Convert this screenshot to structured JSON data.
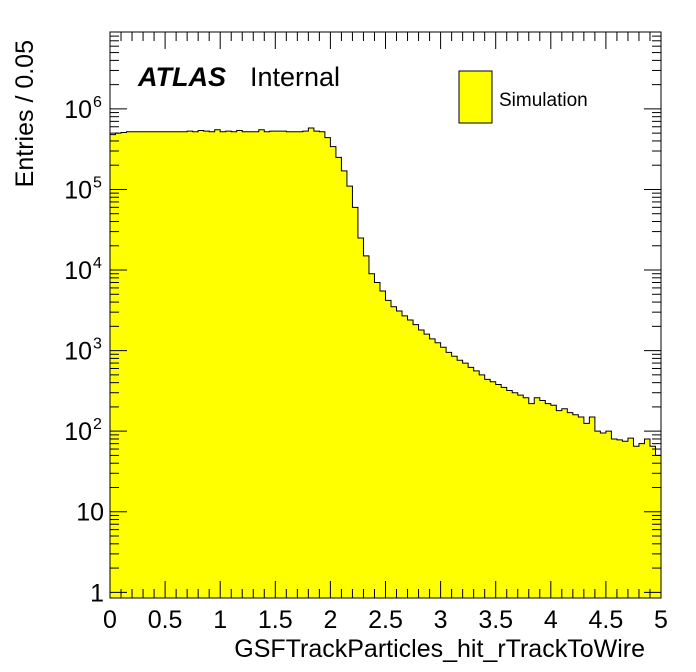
{
  "chart_data": {
    "type": "bar",
    "title": "",
    "xlabel": "GSFTrackParticles_hit_rTrackToWire",
    "ylabel": "Entries / 0.05",
    "xlim": [
      0,
      5
    ],
    "ylim": [
      0.85,
      9000000
    ],
    "yscale": "log",
    "bin_width": 0.05,
    "x_ticks": [
      "0",
      "0.5",
      "1",
      "1.5",
      "2",
      "2.5",
      "3",
      "3.5",
      "4",
      "4.5",
      "5"
    ],
    "y_ticks": [
      {
        "value": 1,
        "base": "1",
        "exp": ""
      },
      {
        "value": 10,
        "base": "10",
        "exp": ""
      },
      {
        "value": 100,
        "base": "10",
        "exp": "2"
      },
      {
        "value": 1000,
        "base": "10",
        "exp": "3"
      },
      {
        "value": 10000,
        "base": "10",
        "exp": "4"
      },
      {
        "value": 100000,
        "base": "10",
        "exp": "5"
      },
      {
        "value": 1000000,
        "base": "10",
        "exp": "6"
      }
    ],
    "series": [
      {
        "name": "Simulation",
        "color": "#ffff00",
        "bin_edges_start": 0,
        "values": [
          480000,
          500000,
          510000,
          520000,
          520000,
          520000,
          520000,
          520000,
          520000,
          520000,
          520000,
          520000,
          520000,
          520000,
          530000,
          520000,
          540000,
          530000,
          520000,
          550000,
          520000,
          530000,
          520000,
          540000,
          520000,
          520000,
          520000,
          550000,
          520000,
          530000,
          530000,
          530000,
          520000,
          520000,
          520000,
          530000,
          580000,
          530000,
          520000,
          440000,
          340000,
          250000,
          170000,
          110000,
          60000,
          25000,
          15000,
          9000,
          7000,
          5500,
          4200,
          3500,
          3100,
          2700,
          2400,
          2100,
          1800,
          1600,
          1400,
          1250,
          1100,
          950,
          850,
          760,
          700,
          620,
          560,
          500,
          440,
          410,
          380,
          350,
          320,
          300,
          280,
          260,
          220,
          260,
          240,
          220,
          210,
          180,
          190,
          170,
          160,
          150,
          125,
          150,
          100,
          95,
          100,
          80,
          78,
          75,
          82,
          65,
          70,
          80,
          65,
          50
        ]
      }
    ],
    "legend": {
      "position": "top-right",
      "entries": [
        "Simulation"
      ]
    },
    "annotations": {
      "atlas": "ATLAS",
      "status": "Internal"
    },
    "colors": {
      "fill": "#ffff00",
      "line": "#000000",
      "background": "#ffffff"
    }
  }
}
